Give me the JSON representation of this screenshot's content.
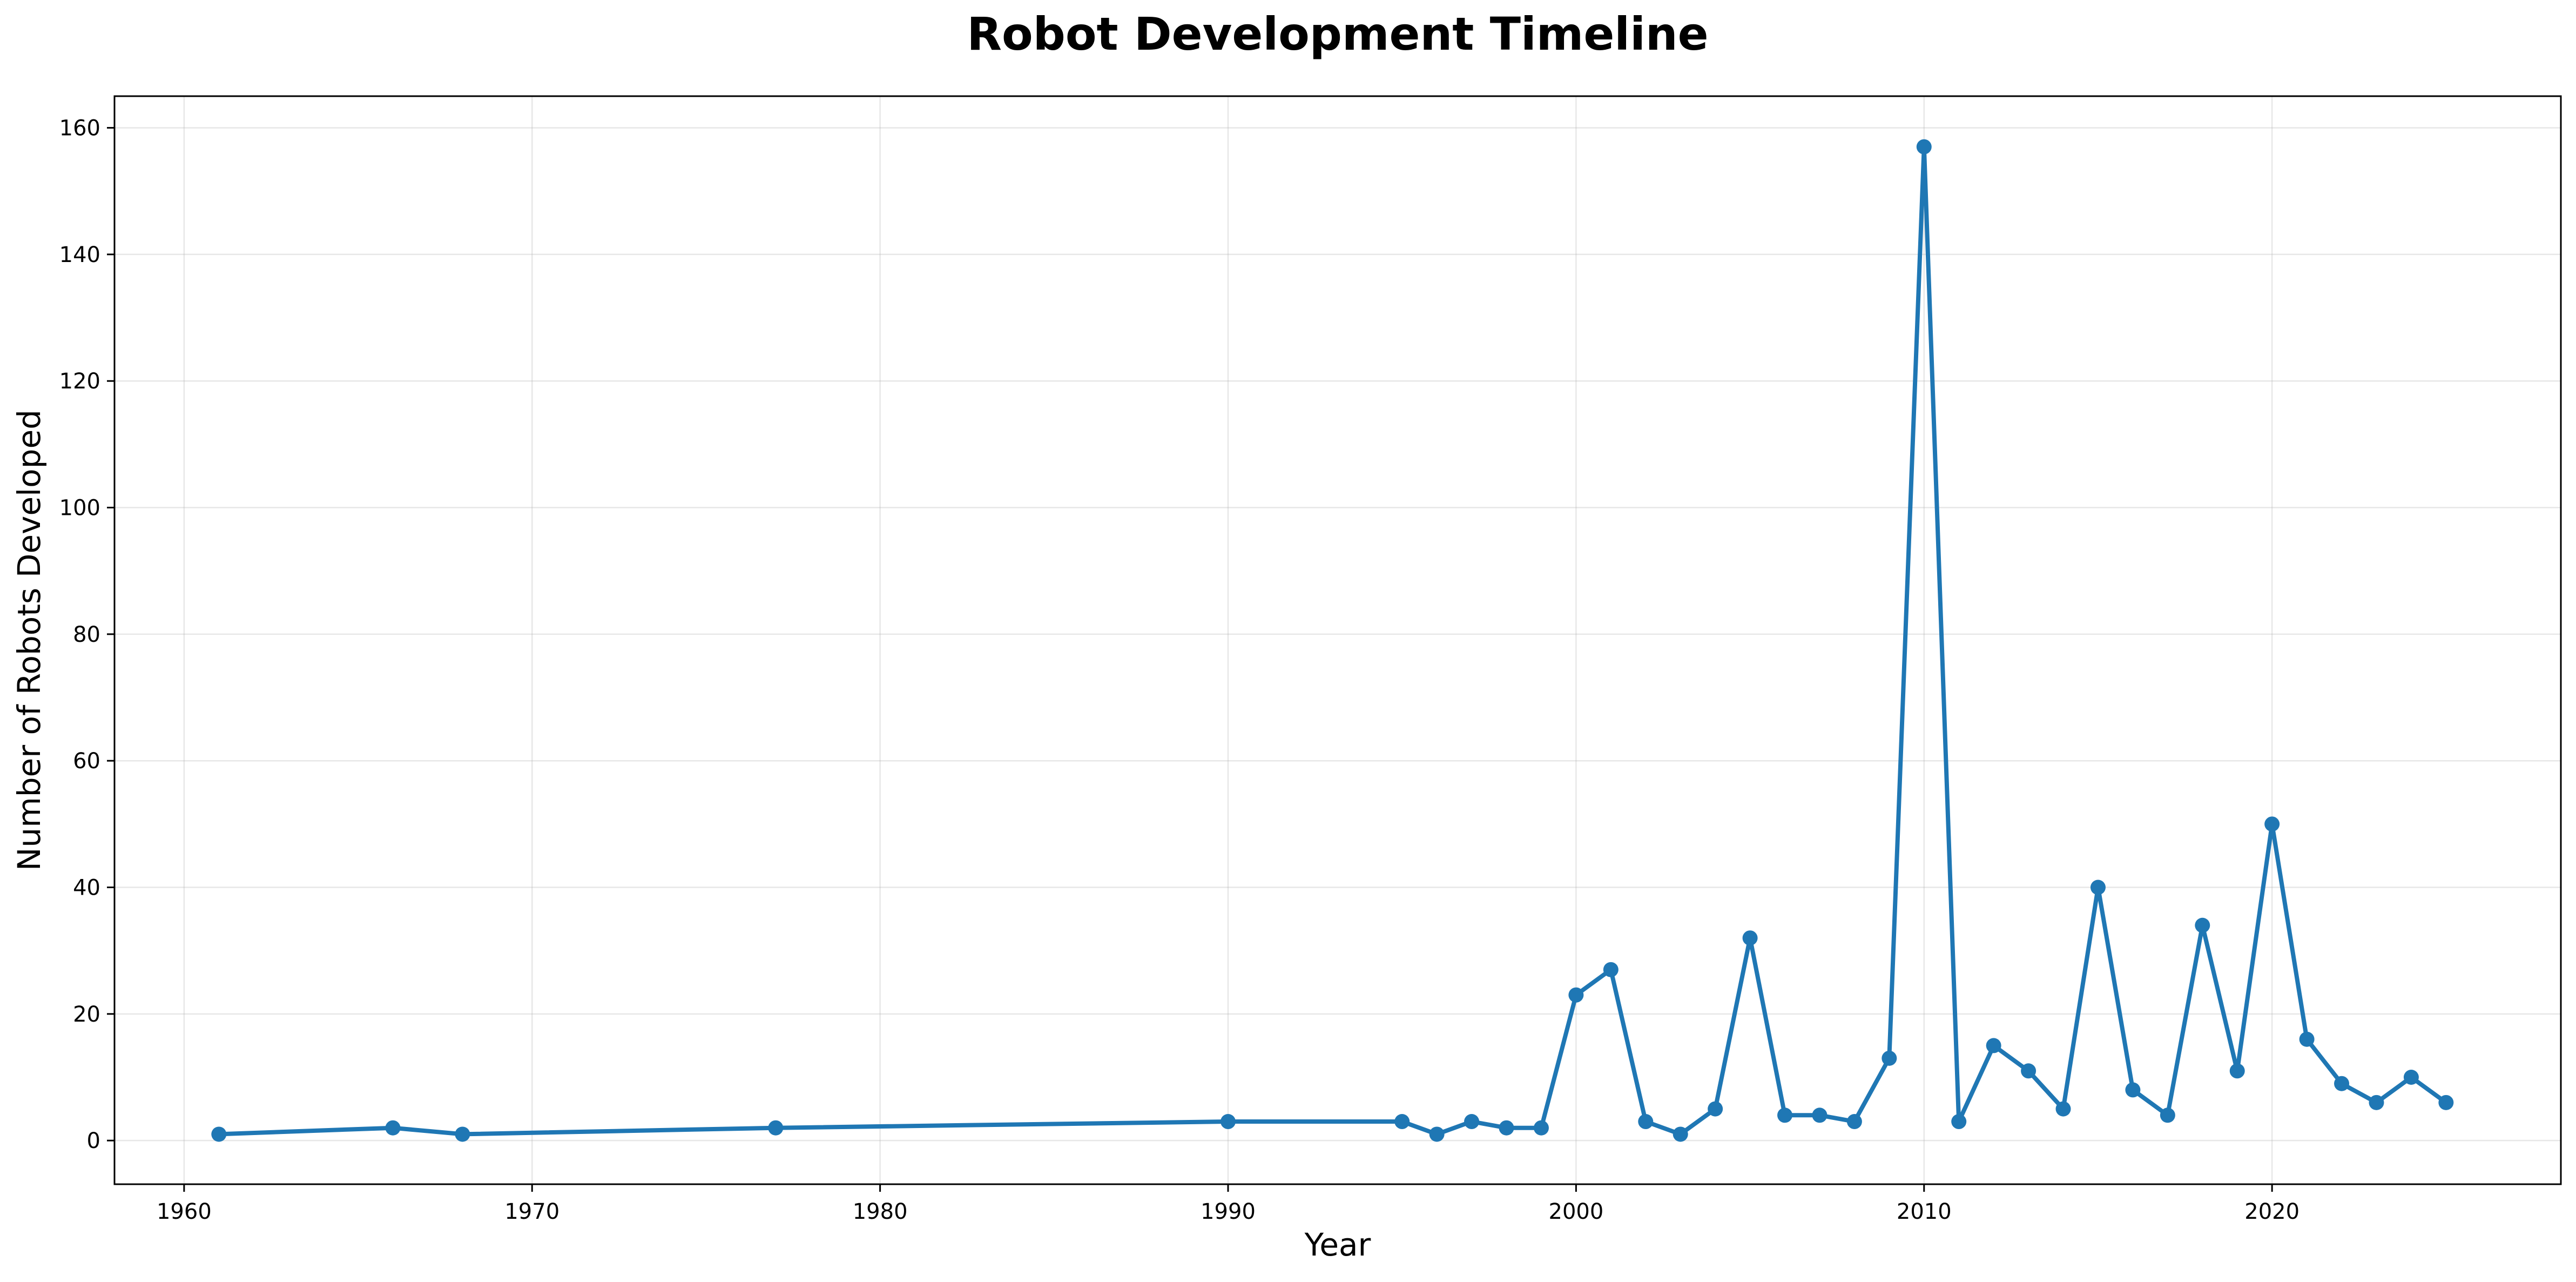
{
  "chart_data": {
    "type": "line",
    "title": "Robot Development Timeline",
    "xlabel": "Year",
    "ylabel": "Number of Robots Developed",
    "xlim": [
      1958,
      2028.3
    ],
    "ylim": [
      -6.9,
      165
    ],
    "xticks": [
      1960,
      1970,
      1980,
      1990,
      2000,
      2010,
      2020
    ],
    "yticks": [
      0,
      20,
      40,
      60,
      80,
      100,
      120,
      140,
      160
    ],
    "grid": true,
    "color": "#1f77b4",
    "series": [
      {
        "x": [
          1961,
          1966,
          1968,
          1977,
          1990,
          1995,
          1996,
          1997,
          1998,
          1999,
          2000,
          2001,
          2002,
          2003,
          2004,
          2005,
          2006,
          2007,
          2008,
          2009,
          2010,
          2011,
          2012,
          2013,
          2014,
          2015,
          2016,
          2017,
          2018,
          2019,
          2020,
          2021,
          2022,
          2023,
          2024,
          2025
        ],
        "y": [
          1,
          2,
          1,
          2,
          3,
          3,
          1,
          3,
          2,
          2,
          23,
          27,
          3,
          1,
          5,
          32,
          4,
          4,
          3,
          13,
          157,
          3,
          15,
          11,
          5,
          40,
          8,
          4,
          34,
          11,
          50,
          16,
          9,
          6,
          10,
          6
        ]
      }
    ]
  }
}
